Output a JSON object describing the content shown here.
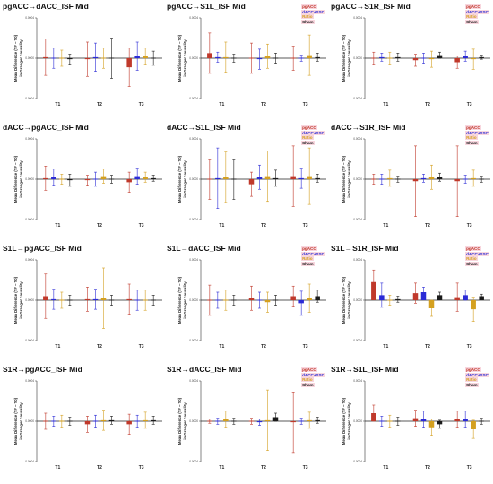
{
  "legend": [
    {
      "name": "pgACC",
      "color": "#c0392b"
    },
    {
      "name": "dACC+SSC",
      "color": "#2b2bd6"
    },
    {
      "name": "Ratio",
      "color": "#d4a020"
    },
    {
      "name": "Sham",
      "color": "#1a1a1a"
    }
  ],
  "ylabel_line1": "Mean Difference (T# − T0)",
  "ylabel_line2": "in Granger causality",
  "categories": [
    "T1",
    "T2",
    "T3"
  ],
  "chart_data": [
    {
      "type": "bar",
      "title": "pgACC→dACC_ISF Mid",
      "ylim": [
        -0.0004,
        0.0004
      ],
      "ticks": [
        -0.0004,
        0,
        0.0004
      ],
      "series": [
        {
          "name": "pgACC",
          "values": [
            1e-05,
            -1e-05,
            -9e-05
          ],
          "err": [
            0.00018,
            0.00017,
            0.00019
          ]
        },
        {
          "name": "dACC+SSC",
          "values": [
            0.0,
            1e-05,
            2e-05
          ],
          "err": [
            0.0001,
            0.00014,
            0.00014
          ]
        },
        {
          "name": "Ratio",
          "values": [
            0.0,
            0.0,
            2e-05
          ],
          "err": [
            8e-05,
            0.0001,
            8e-05
          ]
        },
        {
          "name": "Sham",
          "values": [
            -1e-05,
            0.0,
            0.0
          ],
          "err": [
            5e-05,
            0.0002,
            7e-05
          ]
        }
      ]
    },
    {
      "type": "bar",
      "title": "pgACC→S1L_ISF Mid",
      "ylim": [
        -0.0004,
        0.0004
      ],
      "ticks": [
        -0.0004,
        0,
        0.0004
      ],
      "series": [
        {
          "name": "pgACC",
          "values": [
            5e-05,
            0.0,
            0.0
          ],
          "err": [
            0.0002,
            0.00015,
            0.00012
          ]
        },
        {
          "name": "dACC+SSC",
          "values": [
            1e-05,
            -1e-05,
            0.0
          ],
          "err": [
            5e-05,
            0.0001,
            3e-05
          ]
        },
        {
          "name": "Ratio",
          "values": [
            1e-05,
            2e-05,
            3e-05
          ],
          "err": [
            0.00015,
            0.00012,
            0.0002
          ]
        },
        {
          "name": "Sham",
          "values": [
            0.0,
            0.0,
            1e-05
          ],
          "err": [
            4e-05,
            5e-05,
            4e-05
          ]
        }
      ]
    },
    {
      "type": "bar",
      "title": "pgACC→S1R_ISF Mid",
      "ylim": [
        -0.0004,
        0.0004
      ],
      "ticks": [
        -0.0004,
        0,
        0.0004
      ],
      "series": [
        {
          "name": "pgACC",
          "values": [
            0.0,
            -2e-05,
            -4e-05
          ],
          "err": [
            6e-05,
            6e-05,
            6e-05
          ]
        },
        {
          "name": "dACC+SSC",
          "values": [
            1e-05,
            0.0,
            2e-05
          ],
          "err": [
            4e-05,
            5e-05,
            5e-05
          ]
        },
        {
          "name": "Ratio",
          "values": [
            0.0,
            -1e-05,
            -1e-05
          ],
          "err": [
            6e-05,
            8e-05,
            0.0001
          ]
        },
        {
          "name": "Sham",
          "values": [
            1e-05,
            3e-05,
            1e-05
          ],
          "err": [
            4e-05,
            3e-05,
            2e-05
          ]
        }
      ]
    },
    {
      "type": "bar",
      "title": "dACC→pgACC_ISF Mid",
      "ylim": [
        -0.0004,
        0.0004
      ],
      "ticks": [
        -0.0004,
        0,
        0.0004
      ],
      "series": [
        {
          "name": "pgACC",
          "values": [
            1e-05,
            -1e-05,
            -3e-05
          ],
          "err": [
            0.00012,
            5e-05,
            0.0001
          ]
        },
        {
          "name": "dACC+SSC",
          "values": [
            2e-05,
            0.0,
            3e-05
          ],
          "err": [
            8e-05,
            7e-05,
            8e-05
          ]
        },
        {
          "name": "Ratio",
          "values": [
            0.0,
            3e-05,
            2e-05
          ],
          "err": [
            5e-05,
            7e-05,
            5e-05
          ]
        },
        {
          "name": "Sham",
          "values": [
            -1e-05,
            0.0,
            1e-05
          ],
          "err": [
            6e-05,
            4e-05,
            3e-05
          ]
        }
      ]
    },
    {
      "type": "bar",
      "title": "dACC→S1L_ISF Mid",
      "ylim": [
        -0.0004,
        0.0004
      ],
      "ticks": [
        -0.0004,
        0,
        0.0004
      ],
      "series": [
        {
          "name": "pgACC",
          "values": [
            0.0,
            -5e-05,
            3e-05
          ],
          "err": [
            0.0002,
            0.00012,
            0.0003
          ]
        },
        {
          "name": "dACC+SSC",
          "values": [
            1e-05,
            2e-05,
            1e-05
          ],
          "err": [
            0.0003,
            0.00012,
            0.0001
          ]
        },
        {
          "name": "Ratio",
          "values": [
            2e-05,
            3e-05,
            3e-05
          ],
          "err": [
            0.00025,
            0.00025,
            0.00028
          ]
        },
        {
          "name": "Sham",
          "values": [
            0.0,
            1e-05,
            1e-05
          ],
          "err": [
            0.0002,
            8e-05,
            4e-05
          ]
        }
      ]
    },
    {
      "type": "bar",
      "title": "dACC→S1R_ISF Mid",
      "ylim": [
        -0.0004,
        0.0004
      ],
      "ticks": [
        -0.0004,
        0,
        0.0004
      ],
      "series": [
        {
          "name": "pgACC",
          "values": [
            0.0,
            -2e-05,
            -2e-05
          ],
          "err": [
            5e-05,
            0.00035,
            0.00035
          ]
        },
        {
          "name": "dACC+SSC",
          "values": [
            0.0,
            1e-05,
            0.0
          ],
          "err": [
            5e-05,
            4e-05,
            4e-05
          ]
        },
        {
          "name": "Ratio",
          "values": [
            1e-05,
            2e-05,
            1e-05
          ],
          "err": [
            8e-05,
            0.00012,
            8e-05
          ]
        },
        {
          "name": "Sham",
          "values": [
            0.0,
            2e-05,
            0.0
          ],
          "err": [
            3e-05,
            4e-05,
            3e-05
          ]
        }
      ]
    },
    {
      "type": "bar",
      "title": "S1L→pgACC_ISF Mid",
      "ylim": [
        -0.0004,
        0.0004
      ],
      "ticks": [
        -0.0004,
        0,
        0.0004
      ],
      "series": [
        {
          "name": "pgACC",
          "values": [
            4e-05,
            1e-05,
            1e-05
          ],
          "err": [
            0.00022,
            0.00012,
            0.00015
          ]
        },
        {
          "name": "dACC+SSC",
          "values": [
            1e-05,
            1e-05,
            0.0
          ],
          "err": [
            0.0001,
            0.0001,
            0.0001
          ]
        },
        {
          "name": "Ratio",
          "values": [
            0.0,
            2e-05,
            0.0
          ],
          "err": [
            8e-05,
            0.0003,
            0.0001
          ]
        },
        {
          "name": "Sham",
          "values": [
            0.0,
            0.0,
            0.0
          ],
          "err": [
            5e-05,
            5e-05,
            5e-05
          ]
        }
      ]
    },
    {
      "type": "bar",
      "title": "S1L→dACC_ISF Mid",
      "ylim": [
        -0.0004,
        0.0004
      ],
      "ticks": [
        -0.0004,
        0,
        0.0004
      ],
      "series": [
        {
          "name": "pgACC",
          "values": [
            0.0,
            2e-05,
            4e-05
          ],
          "err": [
            0.00015,
            0.00012,
            0.0001
          ]
        },
        {
          "name": "dACC+SSC",
          "values": [
            0.0,
            0.0,
            -3e-05
          ],
          "err": [
            8e-05,
            8e-05,
            0.00012
          ]
        },
        {
          "name": "Ratio",
          "values": [
            0.0,
            -2e-05,
            2e-05
          ],
          "err": [
            0.0001,
            0.0001,
            0.00014
          ]
        },
        {
          "name": "Sham",
          "values": [
            0.0,
            0.0,
            4e-05
          ],
          "err": [
            5e-05,
            5e-05,
            6e-05
          ]
        }
      ]
    },
    {
      "type": "bar",
      "title": "S1L→S1R_ISF Mid",
      "ylim": [
        -0.0004,
        0.0004
      ],
      "ticks": [
        -0.0004,
        0,
        0.0004
      ],
      "series": [
        {
          "name": "pgACC",
          "values": [
            0.00018,
            7e-05,
            3e-05
          ],
          "err": [
            0.00012,
            0.0001,
            0.00014
          ]
        },
        {
          "name": "dACC+SSC",
          "values": [
            5e-05,
            8e-05,
            5e-05
          ],
          "err": [
            0.00012,
            5e-05,
            5e-05
          ]
        },
        {
          "name": "Ratio",
          "values": [
            0.0,
            -8e-05,
            -9e-05
          ],
          "err": [
            5e-05,
            8e-05,
            0.00012
          ]
        },
        {
          "name": "Sham",
          "values": [
            1e-05,
            5e-05,
            4e-05
          ],
          "err": [
            3e-05,
            3e-05,
            2e-05
          ]
        }
      ]
    },
    {
      "type": "bar",
      "title": "S1R→pgACC_ISF Mid",
      "ylim": [
        -0.0004,
        0.0004
      ],
      "ticks": [
        -0.0004,
        0,
        0.0004
      ],
      "series": [
        {
          "name": "pgACC",
          "values": [
            0.0,
            -3e-05,
            -3e-05
          ],
          "err": [
            8e-05,
            8e-05,
            0.0001
          ]
        },
        {
          "name": "dACC+SSC",
          "values": [
            0.0,
            0.0,
            0.0
          ],
          "err": [
            5e-05,
            6e-05,
            6e-05
          ]
        },
        {
          "name": "Ratio",
          "values": [
            0.0,
            1e-05,
            1e-05
          ],
          "err": [
            6e-05,
            0.0001,
            8e-05
          ]
        },
        {
          "name": "Sham",
          "values": [
            0.0,
            1e-05,
            1e-05
          ],
          "err": [
            4e-05,
            4e-05,
            4e-05
          ]
        }
      ]
    },
    {
      "type": "bar",
      "title": "S1R→dACC_ISF Mid",
      "ylim": [
        -0.0004,
        0.0004
      ],
      "ticks": [
        -0.0004,
        0,
        0.0004
      ],
      "series": [
        {
          "name": "pgACC",
          "values": [
            0.0,
            0.0,
            -1e-05
          ],
          "err": [
            2e-05,
            3e-05,
            0.0003
          ]
        },
        {
          "name": "dACC+SSC",
          "values": [
            0.0,
            -1e-05,
            0.0
          ],
          "err": [
            3e-05,
            3e-05,
            3e-05
          ]
        },
        {
          "name": "Ratio",
          "values": [
            2e-05,
            1e-05,
            1e-05
          ],
          "err": [
            8e-05,
            0.0003,
            8e-05
          ]
        },
        {
          "name": "Sham",
          "values": [
            0.0,
            4e-05,
            1e-05
          ],
          "err": [
            3e-05,
            4e-05,
            3e-05
          ]
        }
      ]
    },
    {
      "type": "bar",
      "title": "S1R→S1L_ISF Mid",
      "ylim": [
        -0.0004,
        0.0004
      ],
      "ticks": [
        -0.0004,
        0,
        0.0004
      ],
      "series": [
        {
          "name": "pgACC",
          "values": [
            8e-05,
            3e-05,
            2e-05
          ],
          "err": [
            8e-05,
            8e-05,
            8e-05
          ]
        },
        {
          "name": "dACC+SSC",
          "values": [
            0.0,
            2e-05,
            2e-05
          ],
          "err": [
            5e-05,
            8e-05,
            8e-05
          ]
        },
        {
          "name": "Ratio",
          "values": [
            0.0,
            -6e-05,
            -8e-05
          ],
          "err": [
            6e-05,
            8e-05,
            9e-05
          ]
        },
        {
          "name": "Sham",
          "values": [
            0.0,
            -3e-05,
            0.0
          ],
          "err": [
            4e-05,
            4e-05,
            3e-05
          ]
        }
      ]
    }
  ]
}
